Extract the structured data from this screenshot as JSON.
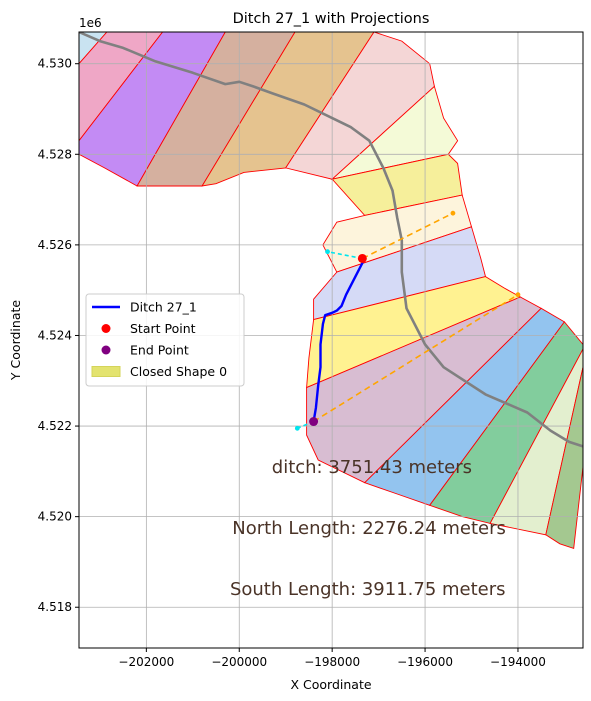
{
  "chart_data": {
    "type": "line",
    "title": "Ditch 27_1 with Projections",
    "xlabel": "X Coordinate",
    "ylabel": "Y Coordinate",
    "y_offset_label": "1e6",
    "xlim": [
      -203450,
      -192600
    ],
    "ylim": [
      4517100,
      4530700
    ],
    "x_ticks": [
      {
        "value": -202000,
        "label": "−202000"
      },
      {
        "value": -200000,
        "label": "−200000"
      },
      {
        "value": -198000,
        "label": "−198000"
      },
      {
        "value": -196000,
        "label": "−196000"
      },
      {
        "value": -194000,
        "label": "−194000"
      }
    ],
    "y_ticks": [
      {
        "value": 4518000,
        "label": "4.518"
      },
      {
        "value": 4520000,
        "label": "4.520"
      },
      {
        "value": 4522000,
        "label": "4.522"
      },
      {
        "value": 4524000,
        "label": "4.524"
      },
      {
        "value": 4526000,
        "label": "4.526"
      },
      {
        "value": 4528000,
        "label": "4.528"
      },
      {
        "value": 4530000,
        "label": "4.530"
      }
    ],
    "grid": true,
    "legend_position": "center-left",
    "legend": [
      {
        "label": "Ditch 27_1",
        "kind": "line",
        "color": "#0000ff"
      },
      {
        "label": "Start Point",
        "kind": "point",
        "color": "#ff0000"
      },
      {
        "label": "End Point",
        "kind": "point",
        "color": "#800080"
      },
      {
        "label": "Closed Shape 0",
        "kind": "patch",
        "color": "#e3e36f"
      }
    ],
    "annotations": [
      {
        "text": "ditch: 3751.43 meters",
        "x": -199300,
        "y": 4521100
      },
      {
        "text": "North Length: 2276.24 meters",
        "x": -200150,
        "y": 4519750
      },
      {
        "text": "South Length: 3911.75 meters",
        "x": -200200,
        "y": 4518400
      }
    ],
    "polygons": [
      {
        "color": "#c9e3f1",
        "points": [
          [
            -203450,
            4530700
          ],
          [
            -202850,
            4530700
          ],
          [
            -203450,
            4530000
          ]
        ]
      },
      {
        "color": "#efa7c6",
        "points": [
          [
            -203450,
            4530000
          ],
          [
            -202850,
            4530700
          ],
          [
            -201650,
            4530700
          ],
          [
            -203450,
            4528300
          ]
        ]
      },
      {
        "color": "#c38bf4",
        "points": [
          [
            -203450,
            4528300
          ],
          [
            -201650,
            4530700
          ],
          [
            -200300,
            4530700
          ],
          [
            -202200,
            4527300
          ],
          [
            -202900,
            4527700
          ],
          [
            -203450,
            4528000
          ]
        ]
      },
      {
        "color": "#d5b09f",
        "points": [
          [
            -202200,
            4527300
          ],
          [
            -200300,
            4530700
          ],
          [
            -198800,
            4530700
          ],
          [
            -200800,
            4527300
          ]
        ]
      },
      {
        "color": "#e5c38f",
        "points": [
          [
            -200800,
            4527300
          ],
          [
            -198800,
            4530700
          ],
          [
            -197100,
            4530700
          ],
          [
            -199000,
            4527700
          ],
          [
            -199900,
            4527600
          ],
          [
            -200500,
            4527350
          ]
        ]
      },
      {
        "color": "#f4d6d6",
        "points": [
          [
            -199000,
            4527700
          ],
          [
            -197100,
            4530700
          ],
          [
            -196500,
            4530500
          ],
          [
            -195900,
            4530000
          ],
          [
            -195800,
            4529500
          ],
          [
            -198000,
            4527450
          ]
        ]
      },
      {
        "color": "#f4fad7",
        "points": [
          [
            -198000,
            4527450
          ],
          [
            -195800,
            4529500
          ],
          [
            -195600,
            4528800
          ],
          [
            -195300,
            4528300
          ],
          [
            -195500,
            4528000
          ]
        ]
      },
      {
        "color": "#f6ef9b",
        "points": [
          [
            -198000,
            4527450
          ],
          [
            -195500,
            4528000
          ],
          [
            -195300,
            4527800
          ],
          [
            -195200,
            4527100
          ],
          [
            -197300,
            4526650
          ]
        ]
      },
      {
        "color": "#fdf4dc",
        "points": [
          [
            -197300,
            4526650
          ],
          [
            -195200,
            4527100
          ],
          [
            -195000,
            4526400
          ],
          [
            -197900,
            4525400
          ],
          [
            -198200,
            4526000
          ],
          [
            -197900,
            4526500
          ]
        ]
      },
      {
        "color": "#d5daf6",
        "points": [
          [
            -197900,
            4525400
          ],
          [
            -195000,
            4526400
          ],
          [
            -194800,
            4525700
          ],
          [
            -194700,
            4525300
          ],
          [
            -198400,
            4524350
          ],
          [
            -198400,
            4524800
          ]
        ]
      },
      {
        "color": "#fff291",
        "points": [
          [
            -198400,
            4524350
          ],
          [
            -194700,
            4525300
          ],
          [
            -194300,
            4525050
          ],
          [
            -193950,
            4524850
          ],
          [
            -198550,
            4522850
          ],
          [
            -198500,
            4523500
          ]
        ]
      },
      {
        "color": "#d8bdd2",
        "points": [
          [
            -198550,
            4522850
          ],
          [
            -193950,
            4524850
          ],
          [
            -193500,
            4524600
          ],
          [
            -197300,
            4520750
          ],
          [
            -198300,
            4521250
          ],
          [
            -198550,
            4521800
          ]
        ]
      },
      {
        "color": "#93c4ef",
        "points": [
          [
            -197300,
            4520750
          ],
          [
            -193500,
            4524600
          ],
          [
            -193000,
            4524300
          ],
          [
            -195900,
            4520250
          ],
          [
            -196600,
            4520500
          ]
        ]
      },
      {
        "color": "#82cd9d",
        "points": [
          [
            -195900,
            4520250
          ],
          [
            -193000,
            4524300
          ],
          [
            -192600,
            4523800
          ],
          [
            -192600,
            4523700
          ],
          [
            -194600,
            4519850
          ],
          [
            -195200,
            4520000
          ]
        ]
      },
      {
        "color": "#e3efcf",
        "points": [
          [
            -194600,
            4519850
          ],
          [
            -192600,
            4523700
          ],
          [
            -192600,
            4523300
          ],
          [
            -193400,
            4519600
          ]
        ]
      },
      {
        "color": "#a4c890",
        "points": [
          [
            -193400,
            4519600
          ],
          [
            -192600,
            4523300
          ],
          [
            -192600,
            4521100
          ],
          [
            -192800,
            4519300
          ],
          [
            -193100,
            4519400
          ]
        ]
      }
    ],
    "ditch_line": [
      [
        -197300,
        4525700
      ],
      [
        -197500,
        4525300
      ],
      [
        -197700,
        4524900
      ],
      [
        -197800,
        4524650
      ],
      [
        -197900,
        4524550
      ],
      [
        -198000,
        4524500
      ],
      [
        -198150,
        4524450
      ],
      [
        -198200,
        4524250
      ],
      [
        -198250,
        4523800
      ],
      [
        -198250,
        4523300
      ],
      [
        -198300,
        4522900
      ],
      [
        -198350,
        4522400
      ],
      [
        -198400,
        4522100
      ]
    ],
    "road_line": [
      [
        -203450,
        4530700
      ],
      [
        -203000,
        4530500
      ],
      [
        -202500,
        4530350
      ],
      [
        -201800,
        4530050
      ],
      [
        -201000,
        4529800
      ],
      [
        -200300,
        4529550
      ],
      [
        -200000,
        4529600
      ],
      [
        -199700,
        4529500
      ],
      [
        -199300,
        4529350
      ],
      [
        -198600,
        4529100
      ],
      [
        -198000,
        4528800
      ],
      [
        -197600,
        4528600
      ],
      [
        -197200,
        4528300
      ],
      [
        -196900,
        4527700
      ],
      [
        -196700,
        4527200
      ],
      [
        -196600,
        4526600
      ],
      [
        -196500,
        4526100
      ],
      [
        -196500,
        4525400
      ],
      [
        -196400,
        4524600
      ],
      [
        -196000,
        4523800
      ],
      [
        -195600,
        4523300
      ],
      [
        -194700,
        4522700
      ],
      [
        -193800,
        4522300
      ],
      [
        -193300,
        4521900
      ],
      [
        -192900,
        4521650
      ],
      [
        -192600,
        4521550
      ]
    ],
    "start_point": {
      "x": -197350,
      "y": 4525700
    },
    "end_point": {
      "x": -198400,
      "y": 4522100
    },
    "north_projection": [
      [
        -197350,
        4525700
      ],
      [
        -195400,
        4526700
      ]
    ],
    "south_projection": [
      [
        -198400,
        4522100
      ],
      [
        -194000,
        4524900
      ]
    ],
    "perpendicular_north": [
      [
        -197350,
        4525700
      ],
      [
        -198100,
        4525850
      ]
    ],
    "perpendicular_south": [
      [
        -198400,
        4522100
      ],
      [
        -198750,
        4521950
      ]
    ]
  }
}
